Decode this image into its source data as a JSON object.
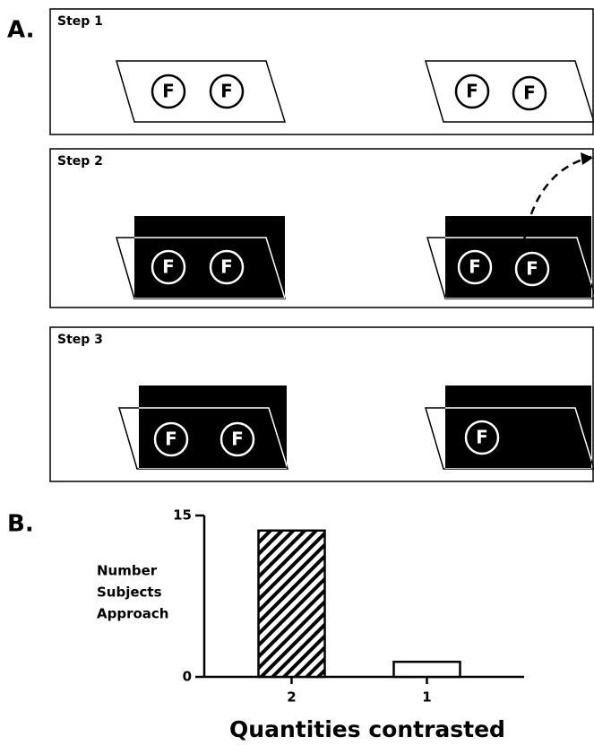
{
  "panels": {
    "a": "A.",
    "b": "B."
  },
  "steps": [
    {
      "title": "Step 1",
      "left": [
        "F",
        "F"
      ],
      "right": [
        "F",
        "F"
      ]
    },
    {
      "title": "Step 2",
      "left": [
        "F",
        "F"
      ],
      "right": [
        "F",
        "F"
      ]
    },
    {
      "title": "Step 3",
      "left": [
        "F",
        "F"
      ],
      "right": [
        "F"
      ]
    }
  ],
  "chart_data": {
    "type": "bar",
    "ylabel": [
      "Number",
      "Subjects",
      "Approach"
    ],
    "xlabel": "Quantities contrasted",
    "categories": [
      "2",
      "1"
    ],
    "values": [
      13.6,
      1.4
    ],
    "ylim": [
      0,
      15
    ],
    "yticks": [
      0,
      15
    ]
  }
}
